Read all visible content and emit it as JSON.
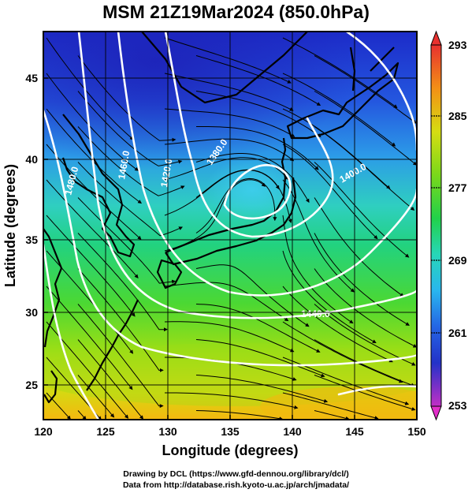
{
  "title": "MSM 21Z19Mar2024 (850.0hPa)",
  "axes": {
    "xlabel": "Longitude (degrees)",
    "ylabel": "Latitude  (degrees)",
    "xticks": [
      "120",
      "125",
      "130",
      "135",
      "140",
      "145",
      "150"
    ],
    "yticks": [
      "45",
      "40",
      "35",
      "30",
      "25"
    ],
    "xlim": [
      120,
      150
    ],
    "ylim": [
      22.4,
      47.6
    ]
  },
  "colorbar": {
    "labels": [
      "293",
      "285",
      "277",
      "269",
      "261",
      "253"
    ],
    "range": [
      253,
      293
    ]
  },
  "contours": {
    "labels": [
      "1380.0",
      "1400.0",
      "1420.0",
      "1440.0",
      "1460.0",
      "1480.0"
    ]
  },
  "credits": {
    "line1": "Drawing by DCL (https://www.gfd-dennou.org/library/dcl/)",
    "line2": "Data from http://database.rish.kyoto-u.ac.jp/arch/jmadata/"
  },
  "colors": {
    "cold": "#1f2fd0",
    "cool": "#2fb8ea",
    "mild": "#24d29a",
    "warm": "#8ede17",
    "hot": "#f3c80f"
  }
}
